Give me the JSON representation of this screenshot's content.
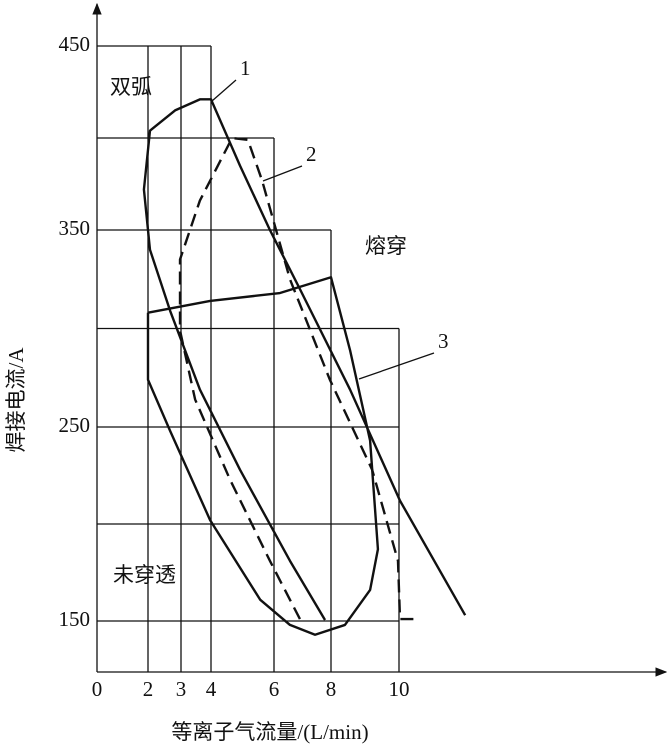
{
  "chart_data": {
    "type": "line",
    "x_label": "等离子气流量/(L/min)",
    "y_label": "焊接电流/A",
    "xlim": [
      0,
      17.8
    ],
    "ylim": [
      124,
      470
    ],
    "xticks": [
      0,
      2,
      3,
      4,
      6,
      8,
      10
    ],
    "yticks": [
      150,
      250,
      350,
      450
    ],
    "grid_lines": [
      [
        2,
        124,
        2,
        450
      ],
      [
        3,
        124,
        3,
        450
      ],
      [
        4,
        124,
        4,
        450
      ],
      [
        6,
        124,
        6,
        400
      ],
      [
        8,
        124,
        8,
        350
      ],
      [
        10,
        124,
        10,
        300
      ],
      [
        0,
        450,
        4,
        450
      ],
      [
        0,
        400,
        6,
        400
      ],
      [
        0,
        350,
        8,
        350
      ],
      [
        0,
        300,
        10,
        300
      ],
      [
        0,
        250,
        10,
        250
      ],
      [
        0,
        200,
        10,
        200
      ],
      [
        0,
        150,
        10,
        150
      ]
    ],
    "series": [
      {
        "name": "1",
        "color": "#111111",
        "dashed": false,
        "x": [
          11.94,
          10.03,
          8.56,
          6.91,
          5.87,
          4.92,
          4,
          3.63,
          2.82,
          2.06,
          1.84,
          2.06,
          2.67,
          3.63,
          4.92,
          6.56,
          7.79
        ],
        "values": [
          153,
          212,
          269,
          320,
          350,
          385,
          421,
          421,
          415,
          404,
          372,
          340,
          309,
          269,
          228,
          181,
          150.5
        ]
      },
      {
        "name": "2",
        "color": "#111111",
        "dashed": true,
        "x": [
          6.91,
          5.87,
          4.6,
          3.47,
          2.97,
          2.97,
          3.63,
          4.67,
          5.17,
          5.62,
          6.56,
          7.96,
          9.21,
          9.97,
          10.03,
          10.47
        ],
        "values": [
          151,
          181,
          223,
          264,
          299,
          335,
          366,
          400,
          399,
          377,
          325,
          274,
          228,
          181,
          151,
          151
        ]
      },
      {
        "name": "3",
        "color": "#111111",
        "dashed": false,
        "x": [
          2,
          3.97,
          6.21,
          8,
          8.56,
          9.15,
          9.38,
          9.15,
          8.41,
          7.44,
          6.56,
          5.56,
          3.97,
          2.67,
          2,
          2
        ],
        "values": [
          308,
          314,
          318,
          326,
          289,
          243,
          187,
          166,
          148,
          143,
          148,
          161,
          202,
          248,
          274,
          308
        ]
      }
    ],
    "annotations": [
      "双弧",
      "熔穿",
      "未穿透"
    ]
  }
}
